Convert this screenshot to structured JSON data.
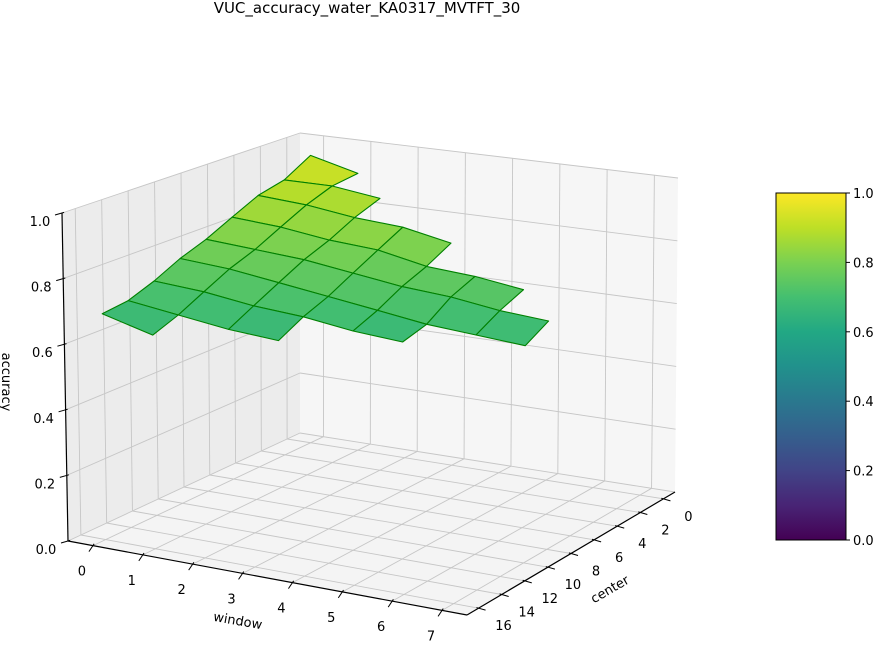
{
  "chart_data": {
    "type": "surface3d",
    "title": "VUC_accuracy_water_KA0317_MVTFT_30",
    "xlabel": "window",
    "ylabel": "center",
    "zlabel": "accuracy",
    "xlim": [
      -0.5,
      7.5
    ],
    "ylim": [
      -1,
      17
    ],
    "zlim": [
      0,
      1
    ],
    "x_ticks": [
      "0",
      "1",
      "2",
      "3",
      "4",
      "5",
      "6",
      "7"
    ],
    "y_ticks": [
      "0",
      "2",
      "4",
      "6",
      "8",
      "10",
      "12",
      "14",
      "16"
    ],
    "z_ticks": [
      "0.0",
      "0.2",
      "0.4",
      "0.6",
      "0.8",
      "1.0"
    ],
    "grid": true,
    "colormap": "viridis",
    "edge_color": "#008000",
    "window": [
      0,
      1,
      2,
      3,
      4,
      5,
      6,
      7
    ],
    "center": [
      0,
      2,
      4,
      6,
      8,
      10,
      12,
      14,
      16
    ],
    "accuracy": [
      [
        0.95,
        0.91,
        null,
        null,
        null,
        null,
        null,
        null
      ],
      [
        0.9,
        0.9,
        0.88,
        null,
        null,
        null,
        null,
        null
      ],
      [
        0.88,
        0.87,
        0.85,
        0.84,
        0.81,
        null,
        null,
        null
      ],
      [
        0.84,
        0.83,
        0.81,
        0.8,
        0.77,
        0.76,
        0.74,
        null
      ],
      [
        0.8,
        0.79,
        0.78,
        0.76,
        0.74,
        0.73,
        0.71,
        0.7
      ],
      [
        0.77,
        0.76,
        0.74,
        0.72,
        0.7,
        0.68,
        0.67,
        0.66
      ],
      [
        0.73,
        0.72,
        0.7,
        0.69,
        0.67,
        0.66,
        null,
        null
      ],
      [
        0.7,
        0.68,
        0.66,
        0.65,
        null,
        null,
        null,
        null
      ],
      [
        0.69,
        0.65,
        null,
        null,
        null,
        null,
        null,
        null
      ]
    ],
    "colorbar": {
      "range": [
        0,
        1
      ],
      "ticks": [
        "0.0",
        "0.2",
        "0.4",
        "0.6",
        "0.8",
        "1.0"
      ]
    }
  }
}
